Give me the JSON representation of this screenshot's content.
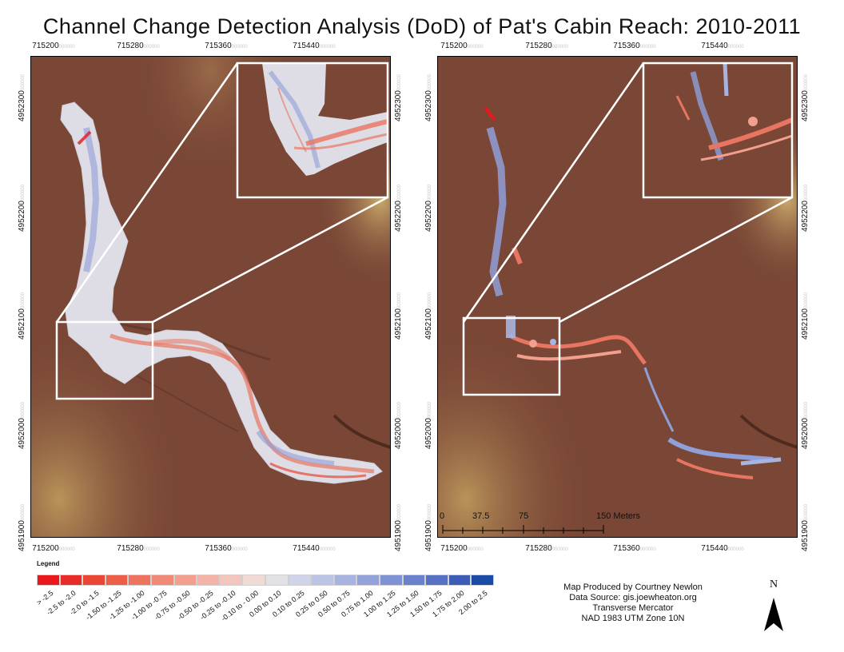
{
  "title": "Channel Change Detection Analysis (DoD) of Pat's Cabin Reach: 2010-2011",
  "x_ticks": [
    "715200",
    "715280",
    "715360",
    "715440"
  ],
  "y_ticks": [
    "4952300",
    "4952200",
    "4952100",
    "4952000",
    "4951900"
  ],
  "tick_suffix": "000000",
  "legend": {
    "title": "Legend",
    "classes": [
      {
        "label": "> -2.5",
        "color": "#e8191c"
      },
      {
        "label": "-2.5 to -2.0",
        "color": "#e72b27"
      },
      {
        "label": "-2.0 to -1.5",
        "color": "#ea4634"
      },
      {
        "label": "-1.50 to -1.25",
        "color": "#ec5e48"
      },
      {
        "label": "-1.25 to -1.00",
        "color": "#ee735e"
      },
      {
        "label": "-1.00 to -0.75",
        "color": "#f08a76"
      },
      {
        "label": "-0.75 to -0.50",
        "color": "#f29f8e"
      },
      {
        "label": "-0.50 to -0.25",
        "color": "#f3b4a7"
      },
      {
        "label": "-0.25 to -0.10",
        "color": "#f3c6bd"
      },
      {
        "label": "-0.10 to - 0.00",
        "color": "#efdad5"
      },
      {
        "label": "0.00 to 0.10",
        "color": "#e2e2e6"
      },
      {
        "label": "0.10 to 0.25",
        "color": "#d0d4e8"
      },
      {
        "label": "0.25 to 0.50",
        "color": "#bcc4e5"
      },
      {
        "label": "0.50 to 0.75",
        "color": "#a8b4e0"
      },
      {
        "label": "0.75 to 1.00",
        "color": "#93a3da"
      },
      {
        "label": "1.00 to 1.25",
        "color": "#7f92d3"
      },
      {
        "label": "1.25 to 1.50",
        "color": "#6a81cb"
      },
      {
        "label": "1.50 to 1.75",
        "color": "#5670c3"
      },
      {
        "label": "1.75 to 2.00",
        "color": "#3d5cb6"
      },
      {
        "label": "2.00 to 2.5",
        "color": "#1b4aa5"
      }
    ]
  },
  "credits": [
    "Map Produced by Courtney Newlon",
    "Data Source: gis.joewheaton.org",
    "Transverse Mercator",
    "NAD 1983 UTM Zone 10N"
  ],
  "north_arrow": {
    "letter": "N",
    "icon": "north-arrow-icon"
  },
  "scale_bar": {
    "labels": [
      "0",
      "37.5",
      "75",
      "150 Meters"
    ]
  },
  "colors": {
    "terrain": "#7a4736",
    "highlight": "#c59a5a",
    "erosion": "#e87561",
    "deposition": "#8f9fd8",
    "neutral": "#dedde5"
  }
}
